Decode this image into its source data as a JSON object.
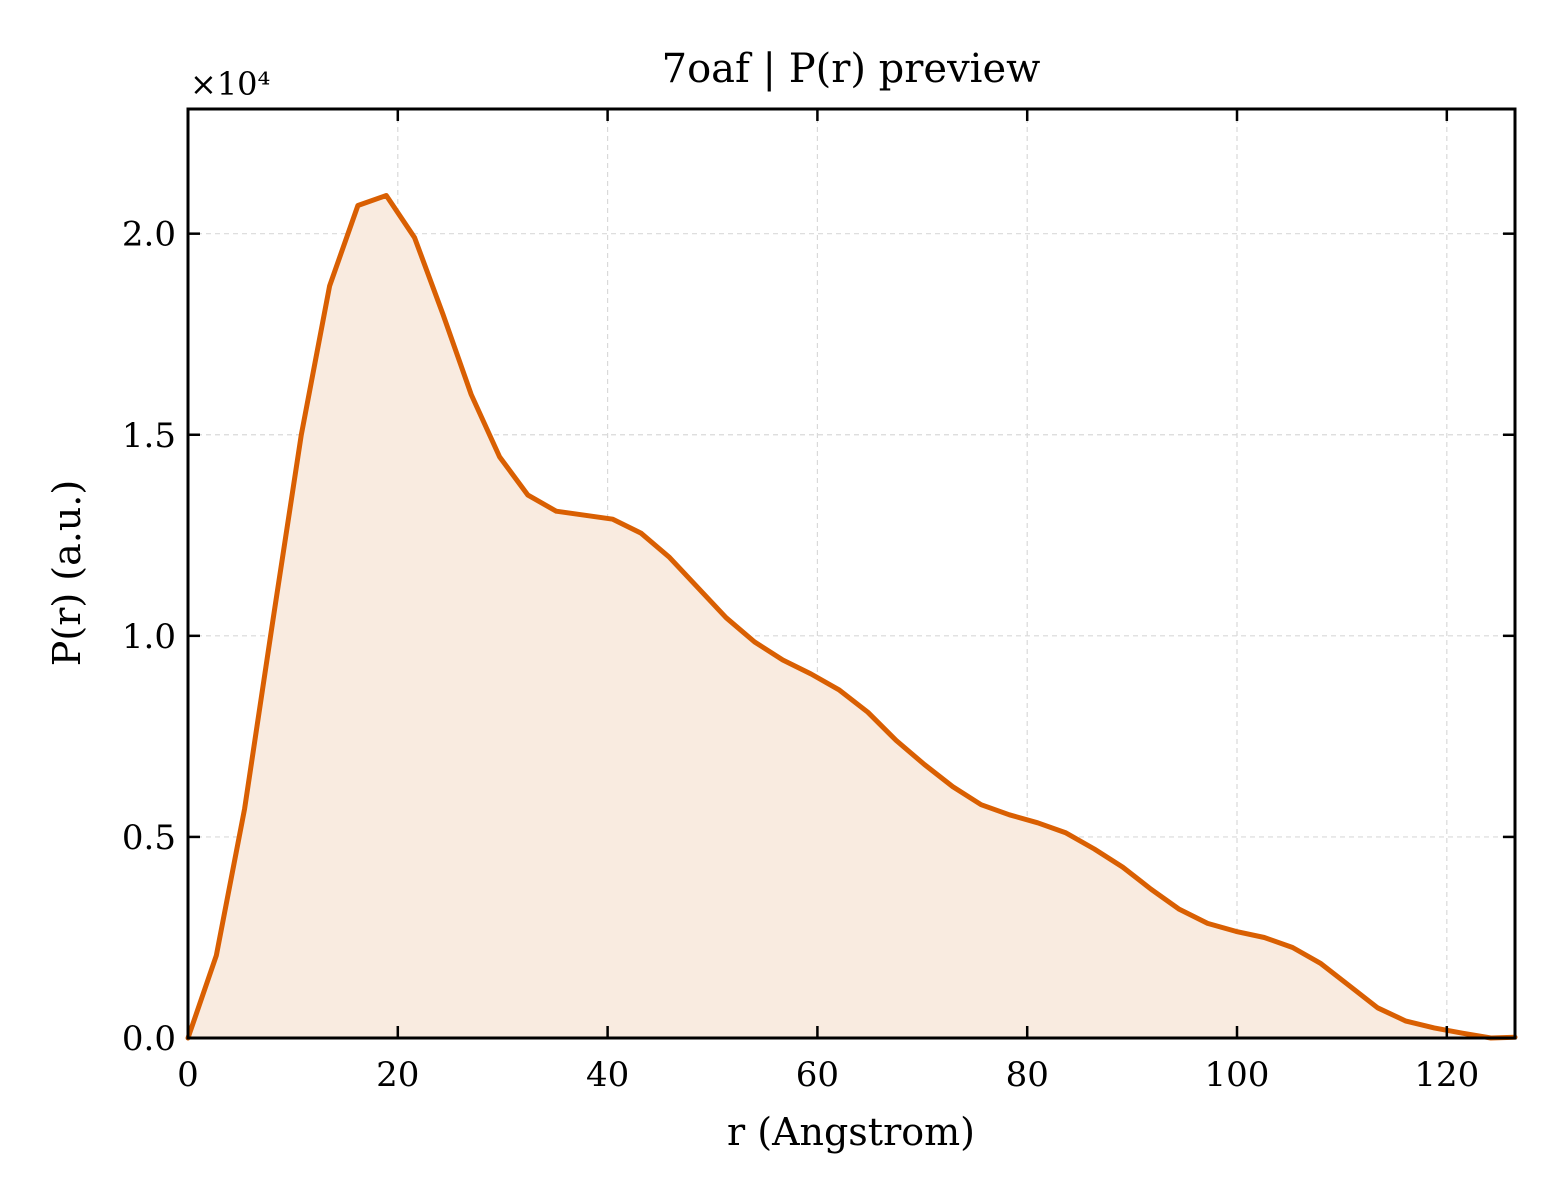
{
  "chart_data": {
    "type": "area",
    "title": "7oaf | P(r) preview",
    "xlabel": "r (Angstrom)",
    "ylabel": "P(r) (a.u.)",
    "y_scale_label": "×10⁴",
    "xlim": [
      0,
      126.5
    ],
    "ylim": [
      0,
      23100
    ],
    "x_ticks": [
      0,
      20,
      40,
      60,
      80,
      100,
      120
    ],
    "x_tick_labels": [
      "0",
      "20",
      "40",
      "60",
      "80",
      "100",
      "120"
    ],
    "y_ticks": [
      0,
      5000,
      10000,
      15000,
      20000
    ],
    "y_tick_labels": [
      "0.0",
      "0.5",
      "1.0",
      "1.5",
      "2.0"
    ],
    "grid": true,
    "colors": {
      "line": "#d95f02",
      "fill": "#f9ebe0",
      "grid": "#d9d9d9",
      "axis": "#000000"
    },
    "series": [
      {
        "x": [
          0,
          2.7,
          5.4,
          8.1,
          10.8,
          13.5,
          16.2,
          18.9,
          21.6,
          24.3,
          27.0,
          29.7,
          32.4,
          35.1,
          37.8,
          40.5,
          43.2,
          45.9,
          48.6,
          51.3,
          54.0,
          56.7,
          59.4,
          62.1,
          64.8,
          67.5,
          70.2,
          72.9,
          75.6,
          78.3,
          81.0,
          83.7,
          86.4,
          89.1,
          91.8,
          94.5,
          97.2,
          99.9,
          102.6,
          105.3,
          108.0,
          110.7,
          113.4,
          116.1,
          118.8,
          121.5,
          124.2,
          126.5
        ],
        "values": [
          0,
          2050,
          5700,
          10400,
          15000,
          18700,
          20700,
          20950,
          19900,
          18000,
          16000,
          14450,
          13500,
          13100,
          13000,
          12900,
          12550,
          11950,
          11200,
          10450,
          9850,
          9400,
          9050,
          8650,
          8100,
          7400,
          6800,
          6250,
          5800,
          5550,
          5350,
          5100,
          4700,
          4250,
          3700,
          3200,
          2850,
          2650,
          2500,
          2250,
          1850,
          1300,
          750,
          420,
          250,
          120,
          0,
          20
        ]
      }
    ]
  }
}
